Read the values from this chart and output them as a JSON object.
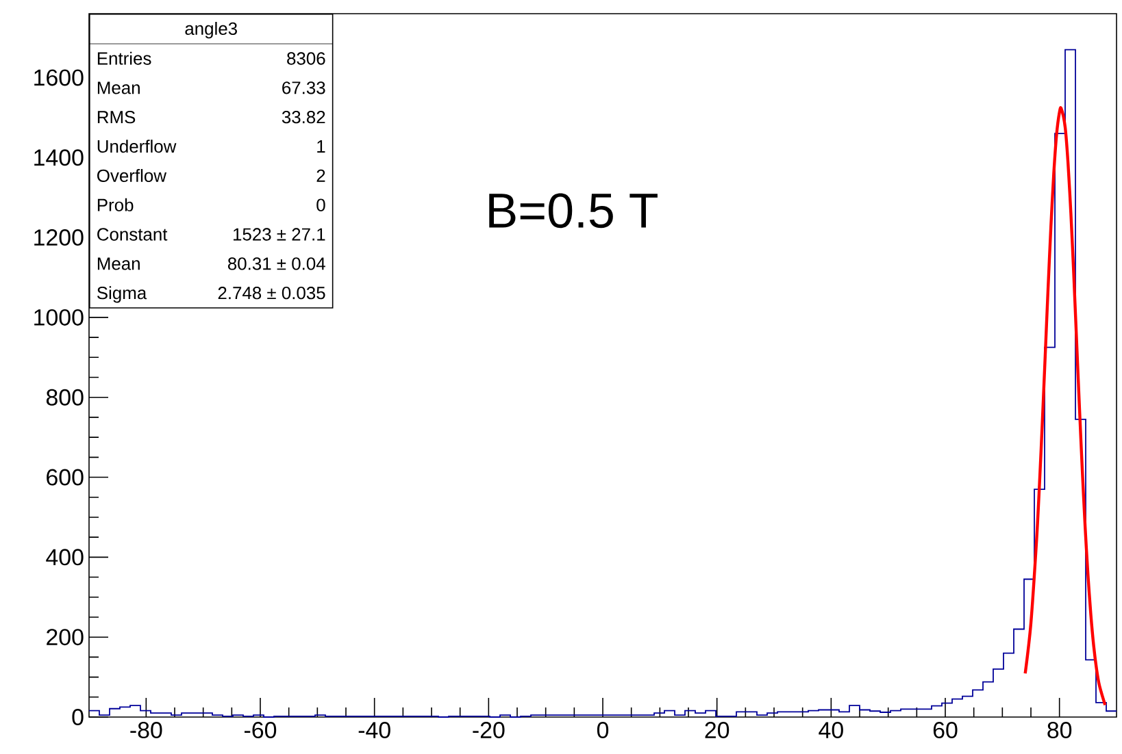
{
  "chart_data": {
    "type": "histogram",
    "title": "angle3",
    "xlim": [
      -90,
      90
    ],
    "ylim": [
      0,
      1760
    ],
    "xticks": [
      -80,
      -60,
      -40,
      -20,
      0,
      20,
      40,
      60,
      80
    ],
    "yticks": [
      0,
      200,
      400,
      600,
      800,
      1000,
      1200,
      1400,
      1600
    ],
    "annotations": [
      "B=0.5 T",
      "Entries",
      "8306",
      "Mean",
      "67.33",
      "RMS",
      "33.82",
      "Underflow",
      "1",
      "Overflow",
      "2",
      "Prob",
      "0",
      "Constant",
      "1523 ± 27.1",
      "Mean",
      "80.31 ± 0.04",
      "Sigma",
      "2.748 ± 0.035"
    ],
    "series": [
      {
        "color": "#000099",
        "bins": [
          -90,
          -88.2,
          -86.4,
          -84.6,
          -82.8,
          -81,
          -79.2,
          -77.4,
          -75.6,
          -73.8,
          -72,
          -70.2,
          -68.4,
          -66.6,
          -64.8,
          -63,
          -61.2,
          -59.4,
          -57.6,
          -55.8,
          -54,
          -52.2,
          -50.4,
          -48.6,
          -46.8,
          -45,
          -43.2,
          -41.4,
          -39.6,
          -37.8,
          -36,
          -34.2,
          -32.4,
          -30.6,
          -28.8,
          -27,
          -25.2,
          -23.4,
          -21.6,
          -19.8,
          -18,
          -16.2,
          -14.4,
          -12.6,
          -10.8,
          -9,
          -7.2,
          -5.4,
          -3.6,
          -1.8,
          0,
          1.8,
          3.6,
          5.4,
          7.2,
          9,
          10.8,
          12.6,
          14.4,
          16.2,
          18,
          19.8,
          21.6,
          23.4,
          25.2,
          27,
          28.8,
          30.6,
          32.4,
          34.2,
          36,
          37.8,
          39.6,
          41.4,
          43.2,
          45,
          46.8,
          48.6,
          50.4,
          52.2,
          54,
          55.8,
          57.6,
          59.4,
          61.2,
          63,
          64.8,
          66.6,
          68.4,
          70.2,
          72,
          73.8,
          75.6,
          77.4,
          79.2,
          81,
          82.8,
          84.6,
          86.4,
          88.2,
          90
        ],
        "values": [
          16,
          5,
          21,
          25,
          29,
          16,
          10,
          10,
          5,
          10,
          10,
          10,
          5,
          2,
          5,
          2,
          5,
          0,
          2,
          2,
          2,
          2,
          5,
          2,
          2,
          2,
          2,
          2,
          2,
          2,
          2,
          2,
          2,
          2,
          0,
          2,
          2,
          2,
          2,
          0,
          5,
          0,
          2,
          5,
          5,
          5,
          5,
          5,
          5,
          5,
          5,
          5,
          5,
          5,
          5,
          10,
          16,
          5,
          16,
          10,
          16,
          2,
          2,
          13,
          13,
          5,
          10,
          13,
          13,
          13,
          16,
          18,
          18,
          13,
          29,
          18,
          15,
          12,
          16,
          20,
          20,
          20,
          28,
          35,
          45,
          52,
          68,
          88,
          120,
          160,
          220,
          345,
          570,
          925,
          1460,
          1670,
          745,
          143,
          36,
          15
        ]
      },
      {
        "type": "line",
        "color": "#ff0000",
        "x": [
          74,
          75,
          76,
          76.5,
          77,
          77.5,
          78,
          78.5,
          79,
          79.5,
          80,
          80.31,
          81,
          81.5,
          82,
          82.5,
          83,
          83.5,
          84,
          84.5,
          85,
          85.5,
          86,
          86.5,
          87,
          88
        ],
        "values": [
          109,
          235,
          445,
          582,
          737,
          903,
          1070,
          1226,
          1359,
          1458,
          1513,
          1523,
          1476,
          1387,
          1261,
          1109,
          943,
          776,
          618,
          476,
          355,
          256,
          178,
          120,
          79,
          30
        ]
      }
    ]
  }
}
